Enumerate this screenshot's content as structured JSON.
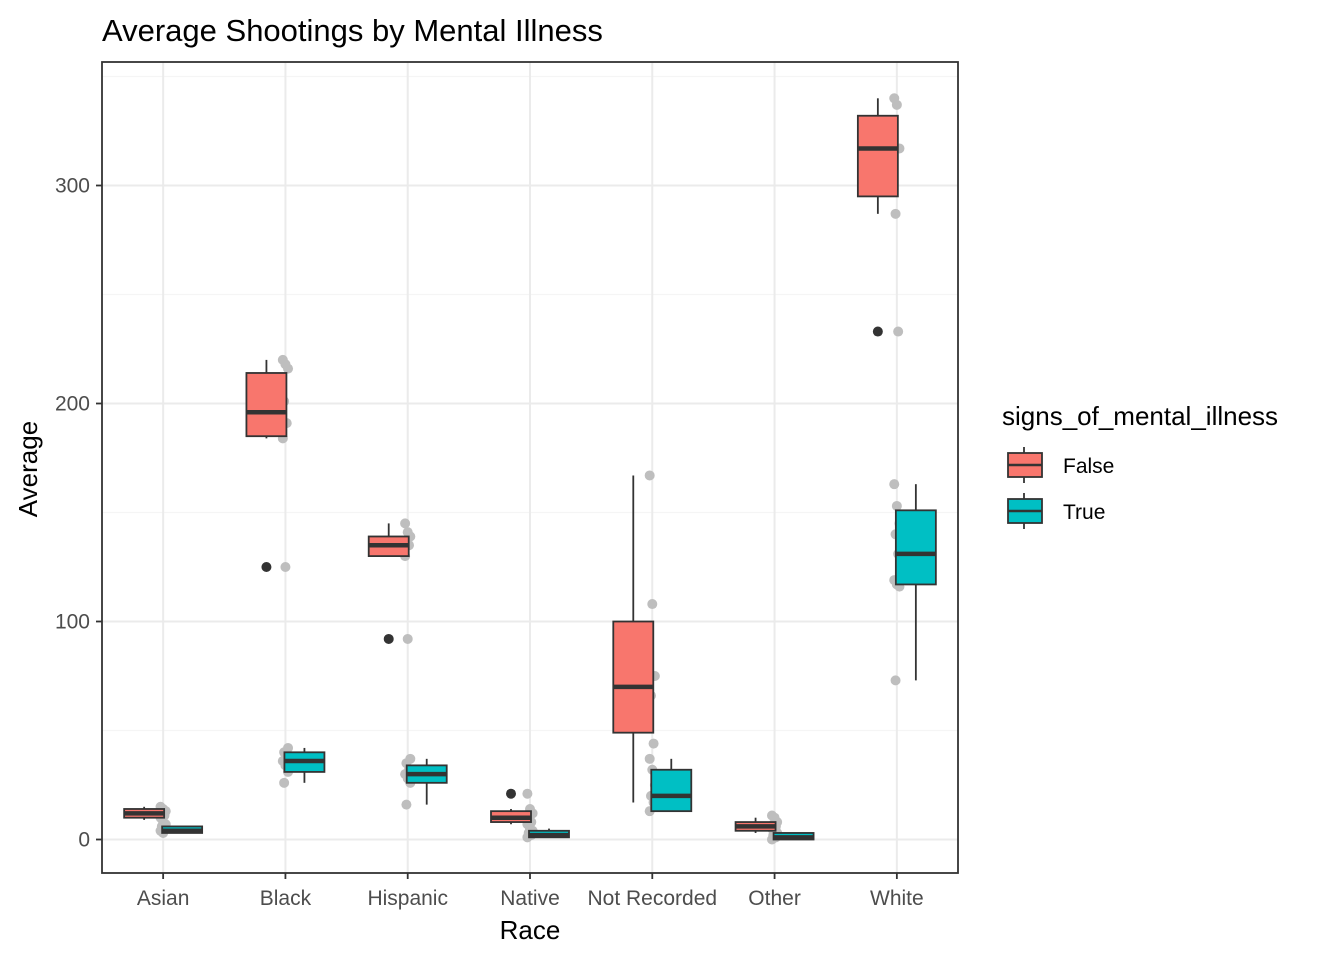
{
  "chart_data": {
    "type": "box",
    "title": "Average Shootings by Mental Illness",
    "xlabel": "Race",
    "ylabel": "Average",
    "ylim": [
      -15,
      357
    ],
    "yticks": [
      0,
      100,
      200,
      300
    ],
    "categories": [
      "Asian",
      "Black",
      "Hispanic",
      "Native",
      "Not Recorded",
      "Other",
      "White"
    ],
    "legend": {
      "title": "signs_of_mental_illness",
      "placement": "right",
      "entries": [
        "False",
        "True"
      ]
    },
    "grid": true,
    "colors": {
      "False": "#F8766D",
      "True": "#00BFC4",
      "outlier": "#333333",
      "jitter": "#BEBEBE",
      "panel_border": "#333333",
      "grid_major": "#EBEBEB",
      "grid_minor": "#F5F5F5"
    },
    "series": [
      {
        "name": "False",
        "boxes": [
          {
            "category": "Asian",
            "lower_whisker": 9,
            "q1": 10,
            "median": 12,
            "q3": 14,
            "upper_whisker": 15,
            "outliers": []
          },
          {
            "category": "Black",
            "lower_whisker": 184,
            "q1": 185,
            "median": 196,
            "q3": 214,
            "upper_whisker": 220,
            "outliers": [
              125
            ]
          },
          {
            "category": "Hispanic",
            "lower_whisker": 130,
            "q1": 130,
            "median": 135,
            "q3": 139,
            "upper_whisker": 145,
            "outliers": [
              92
            ]
          },
          {
            "category": "Native",
            "lower_whisker": 7,
            "q1": 8,
            "median": 10,
            "q3": 13,
            "upper_whisker": 14,
            "outliers": [
              21
            ]
          },
          {
            "category": "Not Recorded",
            "lower_whisker": 17,
            "q1": 49,
            "median": 70,
            "q3": 100,
            "upper_whisker": 167,
            "outliers": []
          },
          {
            "category": "Other",
            "lower_whisker": 3,
            "q1": 4,
            "median": 6,
            "q3": 8,
            "upper_whisker": 10,
            "outliers": []
          },
          {
            "category": "White",
            "lower_whisker": 287,
            "q1": 295,
            "median": 317,
            "q3": 332,
            "upper_whisker": 340,
            "outliers": [
              233
            ]
          }
        ]
      },
      {
        "name": "True",
        "boxes": [
          {
            "category": "Asian",
            "lower_whisker": 3,
            "q1": 3,
            "median": 4,
            "q3": 6,
            "upper_whisker": 6,
            "outliers": []
          },
          {
            "category": "Black",
            "lower_whisker": 26,
            "q1": 31,
            "median": 36,
            "q3": 40,
            "upper_whisker": 42,
            "outliers": []
          },
          {
            "category": "Hispanic",
            "lower_whisker": 16,
            "q1": 26,
            "median": 30,
            "q3": 34,
            "upper_whisker": 37,
            "outliers": []
          },
          {
            "category": "Native",
            "lower_whisker": 1,
            "q1": 1,
            "median": 2,
            "q3": 4,
            "upper_whisker": 5,
            "outliers": []
          },
          {
            "category": "Not Recorded",
            "lower_whisker": 13,
            "q1": 13,
            "median": 20,
            "q3": 32,
            "upper_whisker": 37,
            "outliers": []
          },
          {
            "category": "Other",
            "lower_whisker": 0,
            "q1": 0,
            "median": 1,
            "q3": 3,
            "upper_whisker": 3,
            "outliers": []
          },
          {
            "category": "White",
            "lower_whisker": 73,
            "q1": 117,
            "median": 131,
            "q3": 151,
            "upper_whisker": 163,
            "outliers": []
          }
        ]
      }
    ],
    "jitter_points": [
      {
        "category": "Asian",
        "values": [
          15,
          14,
          13,
          12,
          11,
          10,
          8,
          7,
          6,
          5,
          4,
          3
        ]
      },
      {
        "category": "Black",
        "values": [
          220,
          218,
          216,
          201,
          191,
          184,
          125,
          42,
          40,
          38,
          36,
          34,
          31,
          26
        ]
      },
      {
        "category": "Hispanic",
        "values": [
          145,
          141,
          139,
          137,
          135,
          130,
          92,
          37,
          35,
          32,
          30,
          28,
          26,
          16
        ]
      },
      {
        "category": "Native",
        "values": [
          21,
          14,
          12,
          10,
          8,
          7,
          5,
          4,
          3,
          2,
          1
        ]
      },
      {
        "category": "Not Recorded",
        "values": [
          167,
          108,
          75,
          66,
          44,
          37,
          32,
          25,
          20,
          17,
          13
        ]
      },
      {
        "category": "Other",
        "values": [
          11,
          10,
          8,
          7,
          6,
          5,
          4,
          3,
          2,
          1,
          0
        ]
      },
      {
        "category": "White",
        "values": [
          340,
          337,
          317,
          287,
          233,
          163,
          153,
          145,
          140,
          131,
          119,
          117,
          116,
          73
        ]
      }
    ]
  }
}
